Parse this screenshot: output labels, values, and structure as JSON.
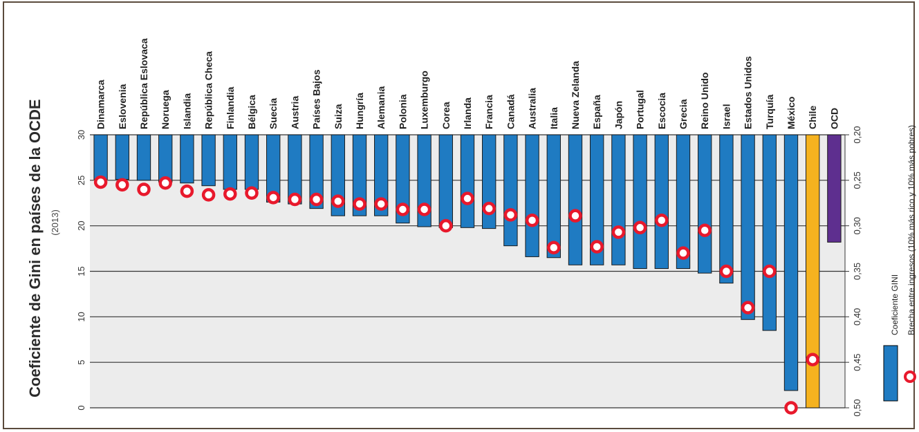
{
  "chart_data": {
    "type": "bar",
    "title": "Coeficiente de Gini en países de la OCDE",
    "subtitle": "(2013)",
    "left_axis": {
      "ylim": [
        0,
        30
      ],
      "ticks": [
        "0",
        "5",
        "10",
        "15",
        "20",
        "25",
        "30"
      ]
    },
    "right_axis": {
      "ylim": [
        0.2,
        0.5
      ],
      "ticks": [
        "0,20",
        "0,25",
        "0,30",
        "0,35",
        "0,40",
        "0,45",
        "0,50"
      ]
    },
    "categories": [
      "Dinamarca",
      "Eslovenia",
      "República Eslovaca",
      "Noruega",
      "Islandia",
      "República Checa",
      "Finlandia",
      "Bélgica",
      "Suecia",
      "Austria",
      "Países Bajos",
      "Suiza",
      "Hungría",
      "Alemania",
      "Polonia",
      "Luxemburgo",
      "Corea",
      "Irlanda",
      "Francia",
      "Canadá",
      "Australia",
      "Italia",
      "Nueva Zelanda",
      "España",
      "Japón",
      "Portugal",
      "Escocia",
      "Grecia",
      "Reino Unido",
      "Israel",
      "Estados Unidos",
      "Turquía",
      "México",
      "Chile",
      "OCD"
    ],
    "series": [
      {
        "name": "Coeficiente GINI",
        "marker": "bar",
        "values": [
          0.249,
          0.249,
          0.25,
          0.252,
          0.253,
          0.256,
          0.26,
          0.26,
          0.274,
          0.276,
          0.281,
          0.289,
          0.289,
          0.289,
          0.297,
          0.301,
          0.302,
          0.302,
          0.303,
          0.322,
          0.334,
          0.335,
          0.343,
          0.343,
          0.343,
          0.347,
          0.347,
          0.347,
          0.352,
          0.363,
          0.403,
          0.415,
          0.481,
          0.5,
          0.318
        ],
        "bar_colors": {
          "default": "#1f7bc2",
          "Chile": "#f5b21f",
          "OCD": "#5e2f8f"
        }
      },
      {
        "name": "Brecha entre ingresos (10% más rico y 10% más pobres)",
        "marker": "circle",
        "values": [
          24.8,
          24.5,
          24.0,
          24.7,
          23.8,
          23.4,
          23.5,
          23.6,
          23.1,
          22.9,
          22.9,
          22.7,
          22.4,
          22.4,
          21.8,
          21.8,
          20.0,
          23.0,
          21.9,
          21.2,
          20.6,
          17.6,
          21.1,
          17.7,
          19.3,
          19.8,
          20.6,
          17.0,
          19.5,
          15.0,
          11.0,
          15.0,
          0.0,
          5.3,
          null
        ]
      }
    ],
    "legend": [
      "Coeficiente GINI",
      "Brecha entre ingresos (10% más rico y 10% más pobres)"
    ],
    "legend_placement": "right",
    "grid": true,
    "colors": {
      "plot_bg": "#ececec",
      "circle_stroke": "#e8192c",
      "grid": "#333333"
    }
  }
}
